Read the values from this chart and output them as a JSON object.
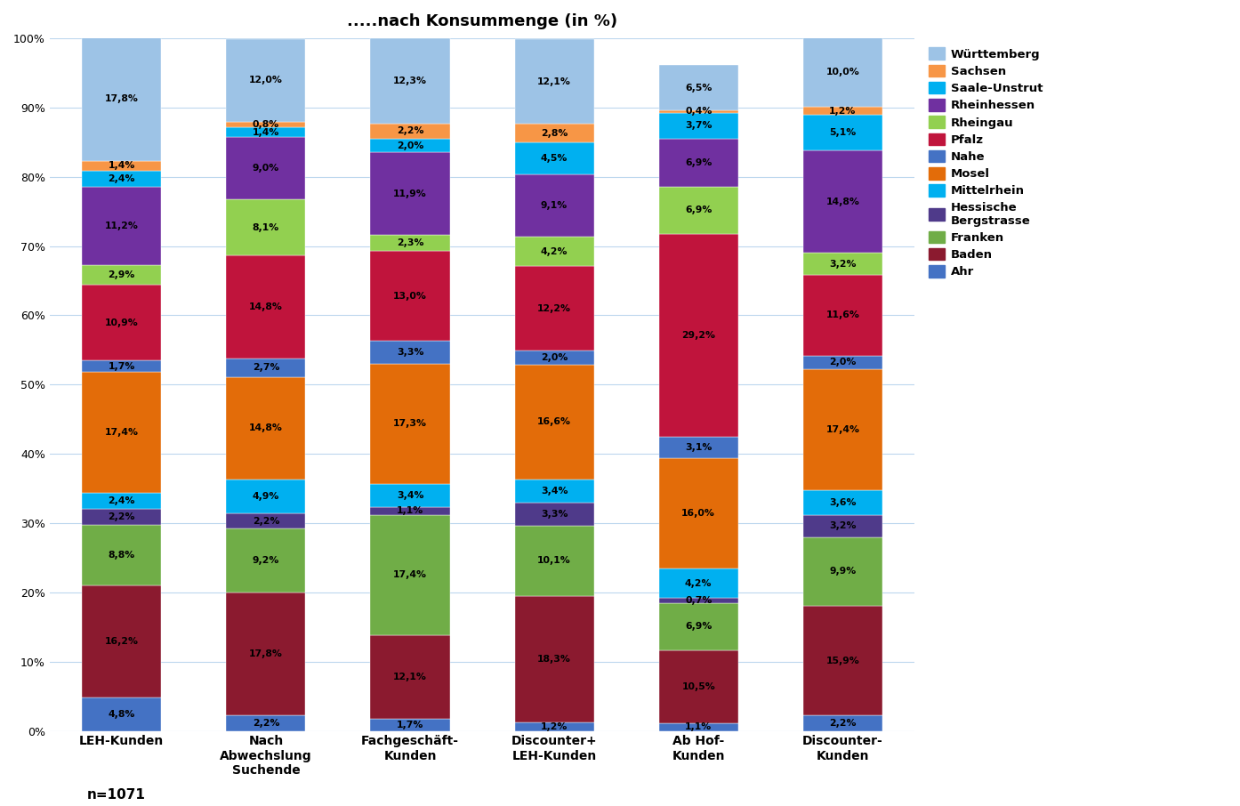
{
  "title": ".....nach Konsummenge (in %)",
  "categories": [
    "LEH-Kunden",
    "Nach\nAbwechslung\nSuchende",
    "Fachgeschäft-\nKunden",
    "Discounter+\nLEH-Kunden",
    "Ab Hof-\nKunden",
    "Discounter-\nKunden"
  ],
  "regions_order": [
    "Ahr",
    "Baden",
    "Franken",
    "Hessische Bergstrasse",
    "Mittelrhein",
    "Mosel",
    "Nahe",
    "Pfalz",
    "Rheingau",
    "Rheinhessen",
    "Saale-Unstrut",
    "Sachsen",
    "Württemberg"
  ],
  "data": {
    "Ahr": [
      4.8,
      2.2,
      1.7,
      1.2,
      1.1,
      2.2
    ],
    "Baden": [
      16.2,
      17.8,
      12.1,
      18.3,
      10.5,
      15.9
    ],
    "Franken": [
      8.8,
      9.2,
      17.4,
      10.1,
      6.9,
      9.9
    ],
    "Hessische Bergstrasse": [
      2.2,
      2.2,
      1.1,
      3.3,
      0.7,
      3.2
    ],
    "Mittelrhein": [
      2.4,
      4.9,
      3.4,
      3.4,
      4.2,
      3.6
    ],
    "Mosel": [
      17.4,
      14.8,
      17.3,
      16.6,
      16.0,
      17.4
    ],
    "Nahe": [
      1.7,
      2.7,
      3.3,
      2.0,
      3.1,
      2.0
    ],
    "Pfalz": [
      10.9,
      14.8,
      13.0,
      12.2,
      29.2,
      11.6
    ],
    "Rheingau": [
      2.9,
      8.1,
      2.3,
      4.2,
      6.9,
      3.2
    ],
    "Rheinhessen": [
      11.2,
      9.0,
      11.9,
      9.1,
      6.9,
      14.8
    ],
    "Saale-Unstrut": [
      2.4,
      1.4,
      2.0,
      4.5,
      3.7,
      5.1
    ],
    "Sachsen": [
      1.4,
      0.8,
      2.2,
      2.8,
      0.4,
      1.2
    ],
    "Württemberg": [
      17.8,
      12.0,
      12.3,
      12.1,
      6.5,
      10.0
    ]
  },
  "bar_colors": {
    "Ahr": "#4472C4",
    "Baden": "#8B1A2F",
    "Franken": "#70AD47",
    "Hessische Bergstrasse": "#7030A0",
    "Mittelrhein": "#00B0F0",
    "Mosel": "#E36C09",
    "Nahe": "#4472C4",
    "Pfalz": "#C0143C",
    "Rheingau": "#92D050",
    "Rheinhessen": "#7030A0",
    "Saale-Unstrut": "#00B0F0",
    "Sachsen": "#F79646",
    "Württemberg": "#9DC3E6"
  },
  "legend_order": [
    "Württemberg",
    "Sachsen",
    "Saale-Unstrut",
    "Rheinhessen",
    "Rheingau",
    "Pfalz",
    "Nahe",
    "Mosel",
    "Mittelrhein",
    "Hessische Bergstrasse",
    "Franken",
    "Baden",
    "Ahr"
  ],
  "note": "n=1071"
}
